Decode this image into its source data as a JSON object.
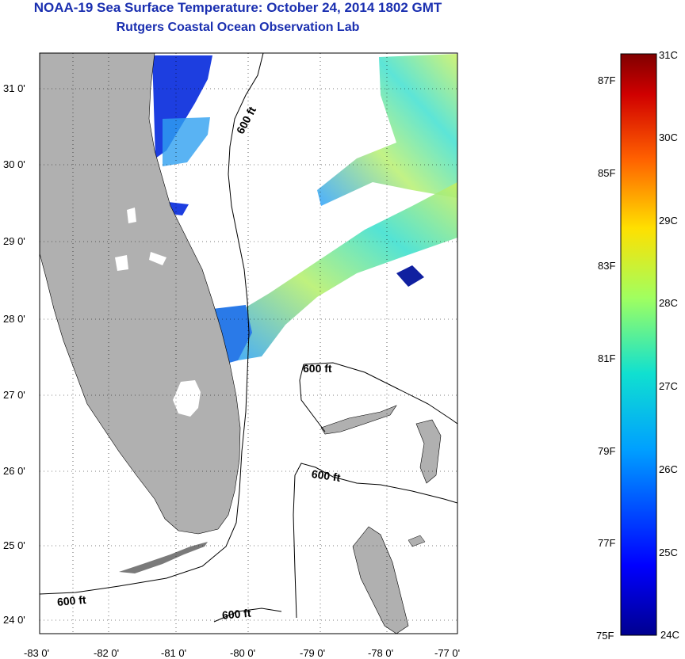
{
  "title": "NOAA-19 Sea Surface Temperature:  October 24, 2014 1802 GMT",
  "subtitle": "Rutgers Coastal Ocean Observation Lab",
  "map": {
    "lon_ticks": [
      "-83 0'",
      "-82 0'",
      "-81 0'",
      "-80 0'",
      "-79 0'",
      "-78 0'",
      "-77 0'"
    ],
    "lat_ticks": [
      "31 0'",
      "30 0'",
      "29 0'",
      "28 0'",
      "27 0'",
      "26 0'",
      "25 0'",
      "24 0'"
    ],
    "contour_labels": [
      "600 ft",
      "600 ft",
      "600 ft",
      "600 ft",
      "600 ft"
    ],
    "land_color": "#b0b0b0"
  },
  "colorbar": {
    "celsius_labels": [
      "31C",
      "30C",
      "29C",
      "28C",
      "27C",
      "26C",
      "25C",
      "24C"
    ],
    "fahrenheit_labels": [
      "87F",
      "85F",
      "83F",
      "81F",
      "79F",
      "77F",
      "75F"
    ],
    "colors": [
      "#00008f",
      "#0000ff",
      "#00a0ff",
      "#10e0d0",
      "#a0ff60",
      "#ffe000",
      "#ff6000",
      "#d00000",
      "#800000"
    ]
  }
}
